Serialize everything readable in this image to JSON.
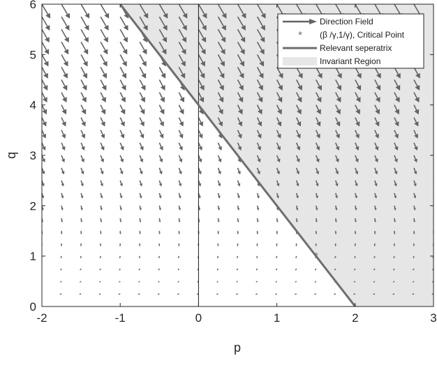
{
  "chart_data": {
    "type": "scatter",
    "title": "",
    "xlabel": "p",
    "ylabel": "q",
    "xlim": [
      -2,
      3
    ],
    "ylim": [
      0,
      6
    ],
    "xticks": [
      -2,
      -1,
      0,
      1,
      2,
      3
    ],
    "yticks": [
      0,
      1,
      2,
      3,
      4,
      5,
      6
    ],
    "xtick_labels": [
      "-2",
      "-1",
      "0",
      "1",
      "2",
      "3"
    ],
    "ytick_labels": [
      "0",
      "1",
      "2",
      "3",
      "4",
      "5",
      "6"
    ],
    "grid": false,
    "legend_position": "top-right",
    "colors": {
      "arrow": "#636363",
      "separatrix": "#6e6e6e",
      "region_fill": "#e6e6e6",
      "critical_point": "#707070",
      "axis": "#262626"
    },
    "direction_field": {
      "name": "Direction Field",
      "model": {
        "dp": "-1 + 0.75*q",
        "dq": "-q"
      },
      "p_start": -2,
      "p_step": 0.25,
      "p_count": 21,
      "q_start": 0.25,
      "q_step": 0.25,
      "q_count": 24
    },
    "critical_point": {
      "name": "(β /γ,1/γ), Critical Point",
      "x": 1.5,
      "y": 1
    },
    "separatrix": {
      "name": "Relevant seperatrix",
      "x": [
        -1,
        2
      ],
      "y": [
        6,
        0
      ]
    },
    "invariant_region": {
      "name": "Invariant Region",
      "x": [
        -1,
        3,
        3,
        2
      ],
      "y": [
        6,
        6,
        0,
        0
      ]
    },
    "vertical_line": {
      "x": 0
    }
  },
  "legend": {
    "items": [
      {
        "label": "Direction Field",
        "marker": "arrow-icon"
      },
      {
        "label": "(β /γ,1/γ), Critical Point",
        "marker": "asterisk-icon"
      },
      {
        "label": "Relevant seperatrix",
        "marker": "line-icon"
      },
      {
        "label": "Invariant Region",
        "marker": "patch-icon"
      }
    ]
  }
}
